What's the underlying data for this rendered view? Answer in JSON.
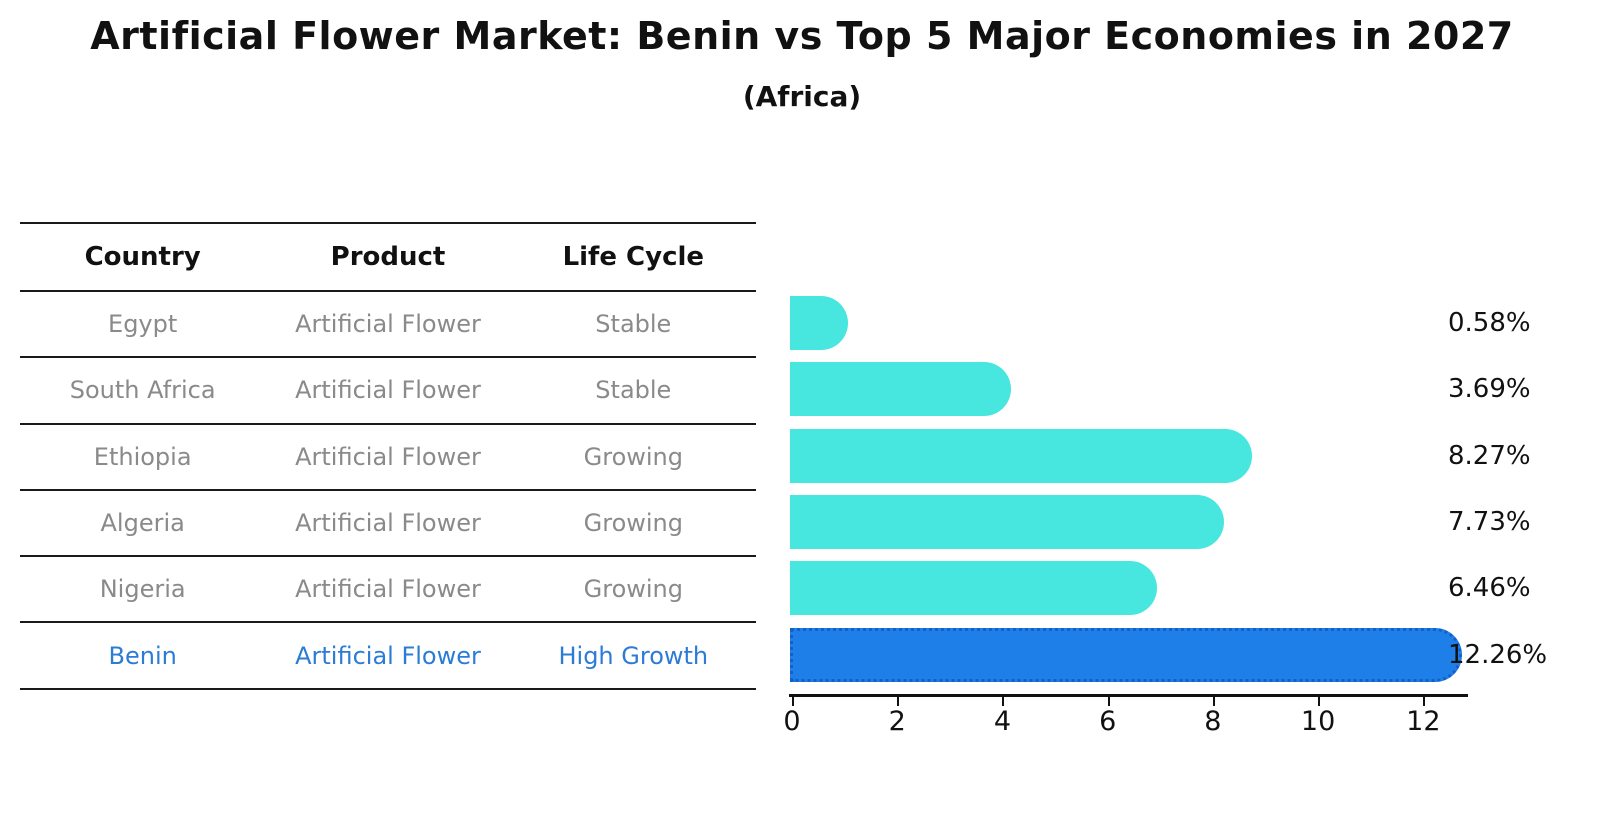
{
  "title": "Artificial Flower Market: Benin vs Top 5 Major Economies in 2027",
  "subtitle": "(Africa)",
  "table": {
    "headers": [
      "Country",
      "Product",
      "Life Cycle"
    ],
    "rows": [
      {
        "country": "Egypt",
        "product": "Artificial Flower",
        "life_cycle": "Stable",
        "highlight": false
      },
      {
        "country": "South Africa",
        "product": "Artificial Flower",
        "life_cycle": "Stable",
        "highlight": false
      },
      {
        "country": "Ethiopia",
        "product": "Artificial Flower",
        "life_cycle": "Growing",
        "highlight": false
      },
      {
        "country": "Algeria",
        "product": "Artificial Flower",
        "life_cycle": "Growing",
        "highlight": false
      },
      {
        "country": "Nigeria",
        "product": "Artificial Flower",
        "life_cycle": "Growing",
        "highlight": false
      },
      {
        "country": "Benin",
        "product": "Artificial Flower",
        "life_cycle": "High Growth",
        "highlight": true
      }
    ]
  },
  "chart_data": {
    "type": "bar",
    "orientation": "horizontal",
    "title": "Artificial Flower Market: Benin vs Top 5 Major Economies in 2027 (Africa)",
    "categories": [
      "Egypt",
      "South Africa",
      "Ethiopia",
      "Algeria",
      "Nigeria",
      "Benin"
    ],
    "values": [
      0.58,
      3.69,
      8.27,
      7.73,
      6.46,
      12.26
    ],
    "value_labels": [
      "0.58%",
      "3.69%",
      "8.27%",
      "7.73%",
      "6.46%",
      "12.26%"
    ],
    "unit": "%",
    "x_ticks": [
      0,
      2,
      4,
      6,
      8,
      10,
      12
    ],
    "xlim": [
      0,
      12.83
    ],
    "grid": false,
    "legend": "none",
    "highlight_index": 5,
    "bar_color": "#47e6df",
    "highlight_color": "#1e7fe8",
    "highlight_border_color": "#1460c8",
    "highlight_text_color": "#2c7cd6"
  }
}
